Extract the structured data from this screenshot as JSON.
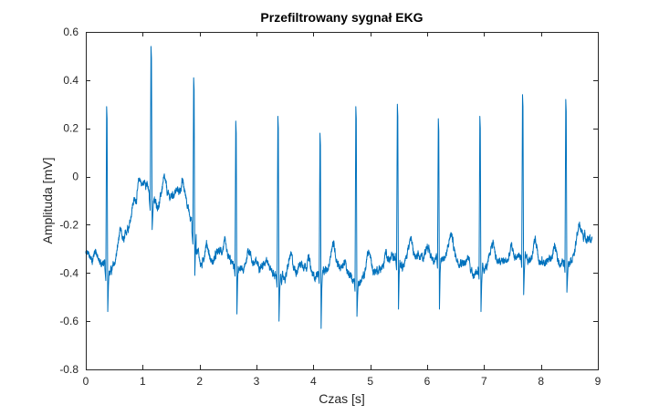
{
  "chart_data": {
    "type": "line",
    "title": "Przefiltrowany sygnał EKG",
    "xlabel": "Czas [s]",
    "ylabel": "Amplituda [mV]",
    "xlim": [
      0,
      9
    ],
    "ylim": [
      -0.8,
      0.6
    ],
    "xticks": [
      0,
      1,
      2,
      3,
      4,
      5,
      6,
      7,
      8,
      9
    ],
    "xtick_labels": [
      "0",
      "1",
      "2",
      "3",
      "4",
      "5",
      "6",
      "7",
      "8",
      "9"
    ],
    "yticks": [
      -0.8,
      -0.6,
      -0.4,
      -0.2,
      0,
      0.2,
      0.4,
      0.6
    ],
    "ytick_labels": [
      "-0.8",
      "-0.6",
      "-0.4",
      "-0.2",
      "0",
      "0.2",
      "0.4",
      "0.6"
    ],
    "grid": false,
    "line_color": "#0072BD",
    "x_range": [
      0,
      8.9
    ],
    "baseline": [
      [
        0.0,
        -0.32
      ],
      [
        0.15,
        -0.35
      ],
      [
        0.3,
        -0.36
      ],
      [
        0.4,
        -0.4
      ],
      [
        0.55,
        -0.36
      ],
      [
        0.65,
        -0.29
      ],
      [
        0.75,
        -0.2
      ],
      [
        0.85,
        -0.1
      ],
      [
        0.95,
        -0.06
      ],
      [
        1.05,
        -0.02
      ],
      [
        1.15,
        -0.1
      ],
      [
        1.3,
        -0.12
      ],
      [
        1.45,
        -0.09
      ],
      [
        1.6,
        -0.06
      ],
      [
        1.75,
        -0.08
      ],
      [
        1.85,
        -0.18
      ],
      [
        1.95,
        -0.3
      ],
      [
        2.05,
        -0.38
      ],
      [
        2.2,
        -0.36
      ],
      [
        2.35,
        -0.31
      ],
      [
        2.5,
        -0.34
      ],
      [
        2.6,
        -0.37
      ],
      [
        2.8,
        -0.4
      ],
      [
        3.0,
        -0.36
      ],
      [
        3.2,
        -0.38
      ],
      [
        3.4,
        -0.42
      ],
      [
        3.6,
        -0.42
      ],
      [
        3.8,
        -0.36
      ],
      [
        4.0,
        -0.41
      ],
      [
        4.2,
        -0.4
      ],
      [
        4.4,
        -0.36
      ],
      [
        4.6,
        -0.41
      ],
      [
        4.8,
        -0.44
      ],
      [
        5.0,
        -0.4
      ],
      [
        5.2,
        -0.38
      ],
      [
        5.4,
        -0.34
      ],
      [
        5.6,
        -0.36
      ],
      [
        5.8,
        -0.34
      ],
      [
        6.0,
        -0.33
      ],
      [
        6.2,
        -0.34
      ],
      [
        6.4,
        -0.33
      ],
      [
        6.6,
        -0.35
      ],
      [
        6.8,
        -0.4
      ],
      [
        7.0,
        -0.38
      ],
      [
        7.2,
        -0.36
      ],
      [
        7.4,
        -0.35
      ],
      [
        7.6,
        -0.33
      ],
      [
        7.8,
        -0.35
      ],
      [
        8.0,
        -0.36
      ],
      [
        8.2,
        -0.34
      ],
      [
        8.4,
        -0.36
      ],
      [
        8.6,
        -0.33
      ],
      [
        8.75,
        -0.25
      ],
      [
        8.9,
        -0.26
      ]
    ],
    "r_peaks": [
      {
        "t": 0.37,
        "peak": 0.29,
        "trough": -0.56
      },
      {
        "t": 1.15,
        "peak": 0.54,
        "trough": -0.22
      },
      {
        "t": 1.9,
        "peak": 0.41,
        "trough": -0.41
      },
      {
        "t": 2.64,
        "peak": 0.23,
        "trough": -0.57
      },
      {
        "t": 3.38,
        "peak": 0.25,
        "trough": -0.6
      },
      {
        "t": 4.12,
        "peak": 0.18,
        "trough": -0.63
      },
      {
        "t": 4.75,
        "peak": 0.29,
        "trough": -0.58
      },
      {
        "t": 5.48,
        "peak": 0.3,
        "trough": -0.55
      },
      {
        "t": 6.2,
        "peak": 0.24,
        "trough": -0.55
      },
      {
        "t": 6.93,
        "peak": 0.25,
        "trough": -0.56
      },
      {
        "t": 7.68,
        "peak": 0.34,
        "trough": -0.49
      },
      {
        "t": 8.44,
        "peak": 0.32,
        "trough": -0.48
      }
    ]
  }
}
